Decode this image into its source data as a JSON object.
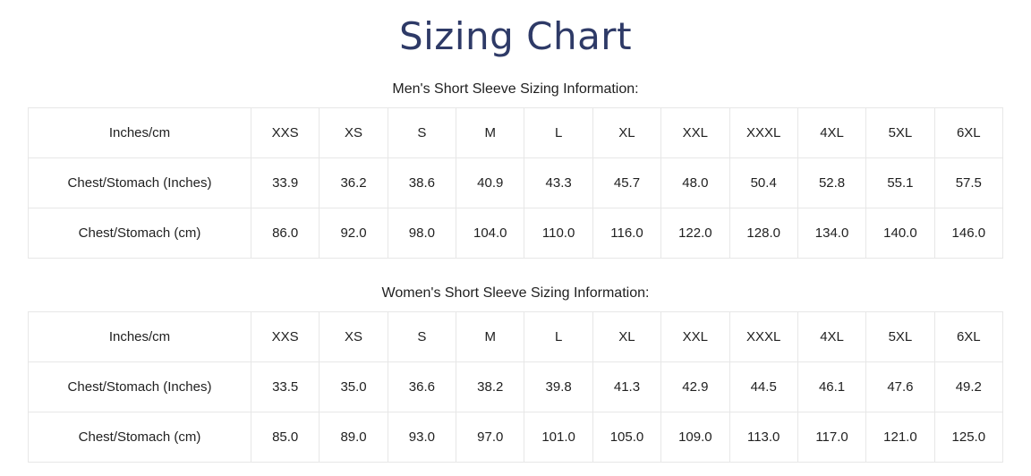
{
  "page": {
    "title": "Sizing Chart"
  },
  "colors": {
    "title_navy": "#2e3a67",
    "table_border": "#e7e7e7",
    "body_text": "#212121"
  },
  "sections": [
    {
      "heading": "Men's Short Sleeve Sizing Information:",
      "table": {
        "header": [
          "Inches/cm",
          "XXS",
          "XS",
          "S",
          "M",
          "L",
          "XL",
          "XXL",
          "XXXL",
          "4XL",
          "5XL",
          "6XL"
        ],
        "rows": [
          {
            "label": "Chest/Stomach (Inches)",
            "values": [
              "33.9",
              "36.2",
              "38.6",
              "40.9",
              "43.3",
              "45.7",
              "48.0",
              "50.4",
              "52.8",
              "55.1",
              "57.5"
            ]
          },
          {
            "label": "Chest/Stomach (cm)",
            "values": [
              "86.0",
              "92.0",
              "98.0",
              "104.0",
              "110.0",
              "116.0",
              "122.0",
              "128.0",
              "134.0",
              "140.0",
              "146.0"
            ]
          }
        ]
      }
    },
    {
      "heading": "Women's Short Sleeve Sizing Information:",
      "table": {
        "header": [
          "Inches/cm",
          "XXS",
          "XS",
          "S",
          "M",
          "L",
          "XL",
          "XXL",
          "XXXL",
          "4XL",
          "5XL",
          "6XL"
        ],
        "rows": [
          {
            "label": "Chest/Stomach (Inches)",
            "values": [
              "33.5",
              "35.0",
              "36.6",
              "38.2",
              "39.8",
              "41.3",
              "42.9",
              "44.5",
              "46.1",
              "47.6",
              "49.2"
            ]
          },
          {
            "label": "Chest/Stomach (cm)",
            "values": [
              "85.0",
              "89.0",
              "93.0",
              "97.0",
              "101.0",
              "105.0",
              "109.0",
              "113.0",
              "117.0",
              "121.0",
              "125.0"
            ]
          }
        ]
      }
    }
  ]
}
